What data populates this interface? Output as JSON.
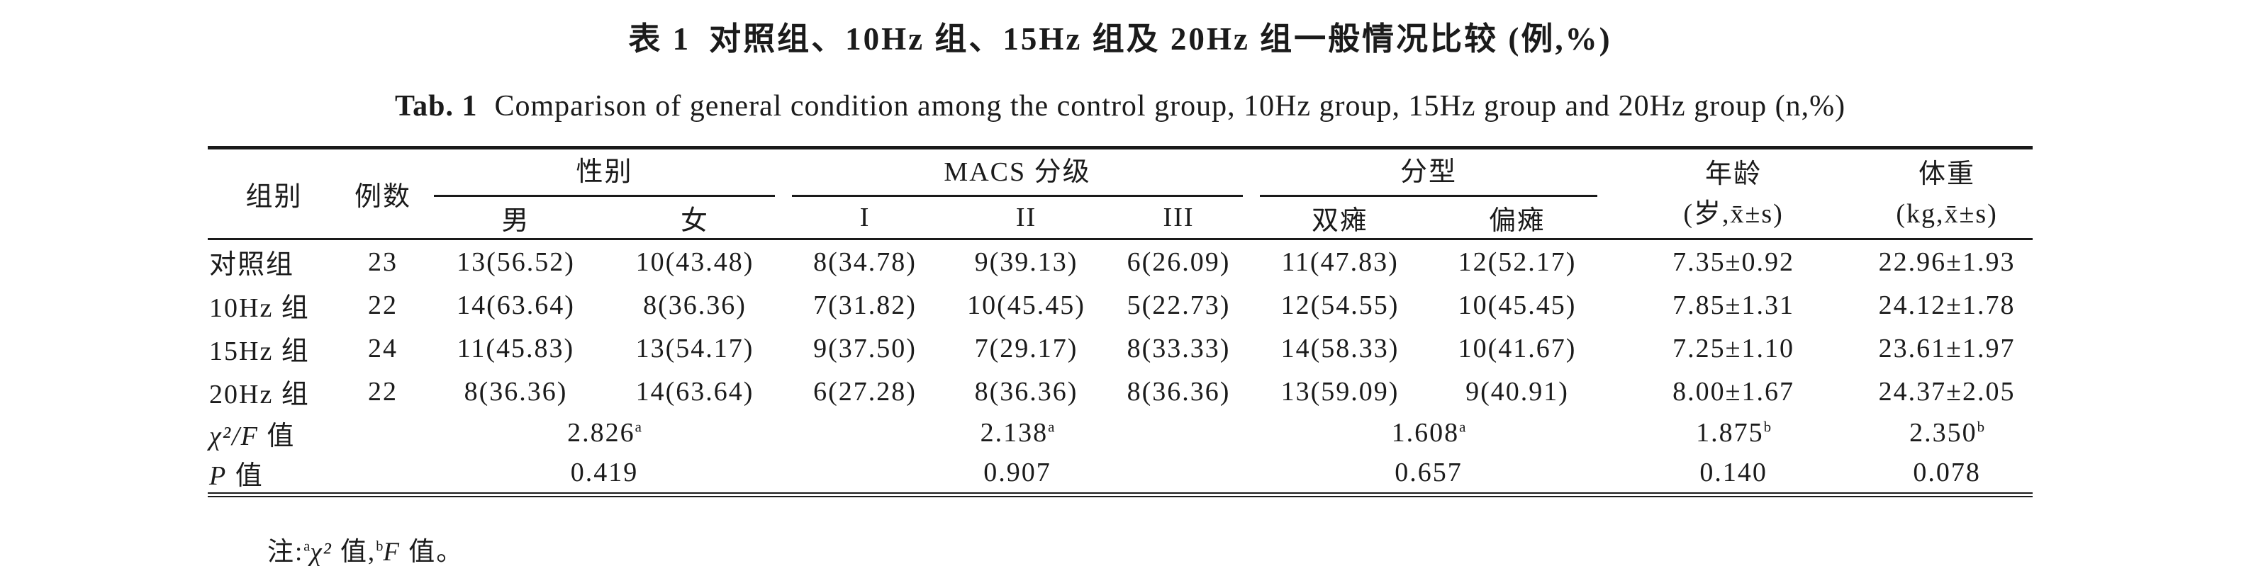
{
  "colors": {
    "text": "#1b1b1b",
    "rule": "#1a1a1a",
    "background": "#ffffff"
  },
  "title": {
    "zh_label": "表 1",
    "zh_text": "对照组、10Hz 组、15Hz 组及 20Hz 组一般情况比较 (例,%)",
    "en_label": "Tab. 1",
    "en_text": "Comparison of general condition among the control group, 10Hz group, 15Hz group and 20Hz group (n,%)"
  },
  "header": {
    "col_group": "组别",
    "col_n": "例数",
    "span_gender": "性别",
    "gender_cols": [
      "男",
      "女"
    ],
    "span_macs": "MACS 分级",
    "macs_cols": [
      "I",
      "II",
      "III"
    ],
    "span_type": "分型",
    "type_cols": [
      "双瘫",
      "偏瘫"
    ],
    "col_age_line1": "年龄",
    "col_age_line2": "(岁,x̄±s)",
    "col_weight_line1": "体重",
    "col_weight_line2": "(kg,x̄±s)"
  },
  "rows": [
    {
      "label": "对照组",
      "n": "23",
      "male": "13(56.52)",
      "female": "10(43.48)",
      "macs1": "8(34.78)",
      "macs2": "9(39.13)",
      "macs3": "6(26.09)",
      "diplegia": "11(47.83)",
      "hemiplegia": "12(52.17)",
      "age": "7.35±0.92",
      "weight": "22.96±1.93"
    },
    {
      "label": "10Hz 组",
      "n": "22",
      "male": "14(63.64)",
      "female": "8(36.36)",
      "macs1": "7(31.82)",
      "macs2": "10(45.45)",
      "macs3": "5(22.73)",
      "diplegia": "12(54.55)",
      "hemiplegia": "10(45.45)",
      "age": "7.85±1.31",
      "weight": "24.12±1.78"
    },
    {
      "label": "15Hz 组",
      "n": "24",
      "male": "11(45.83)",
      "female": "13(54.17)",
      "macs1": "9(37.50)",
      "macs2": "7(29.17)",
      "macs3": "8(33.33)",
      "diplegia": "14(58.33)",
      "hemiplegia": "10(41.67)",
      "age": "7.25±1.10",
      "weight": "23.61±1.97"
    },
    {
      "label": "20Hz 组",
      "n": "22",
      "male": "8(36.36)",
      "female": "14(63.64)",
      "macs1": "6(27.28)",
      "macs2": "8(36.36)",
      "macs3": "8(36.36)",
      "diplegia": "13(59.09)",
      "hemiplegia": "9(40.91)",
      "age": "8.00±1.67",
      "weight": "24.37±2.05"
    }
  ],
  "stats": [
    {
      "label_it": "χ²/F",
      "label_zh": " 值",
      "gender": "2.826",
      "gender_sup": "a",
      "macs": "2.138",
      "macs_sup": "a",
      "type": "1.608",
      "type_sup": "a",
      "age": "1.875",
      "age_sup": "b",
      "weight": "2.350",
      "weight_sup": "b"
    },
    {
      "label_it": "P",
      "label_zh": " 值",
      "gender": "0.419",
      "gender_sup": "",
      "macs": "0.907",
      "macs_sup": "",
      "type": "0.657",
      "type_sup": "",
      "age": "0.140",
      "age_sup": "",
      "weight": "0.078",
      "weight_sup": ""
    }
  ],
  "footnote": {
    "prefix": "注:",
    "sup_a": "a",
    "chi_it": "χ²",
    "chi": " 值,",
    "sup_b": "b",
    "f_it": "F",
    "f": " 值。"
  }
}
